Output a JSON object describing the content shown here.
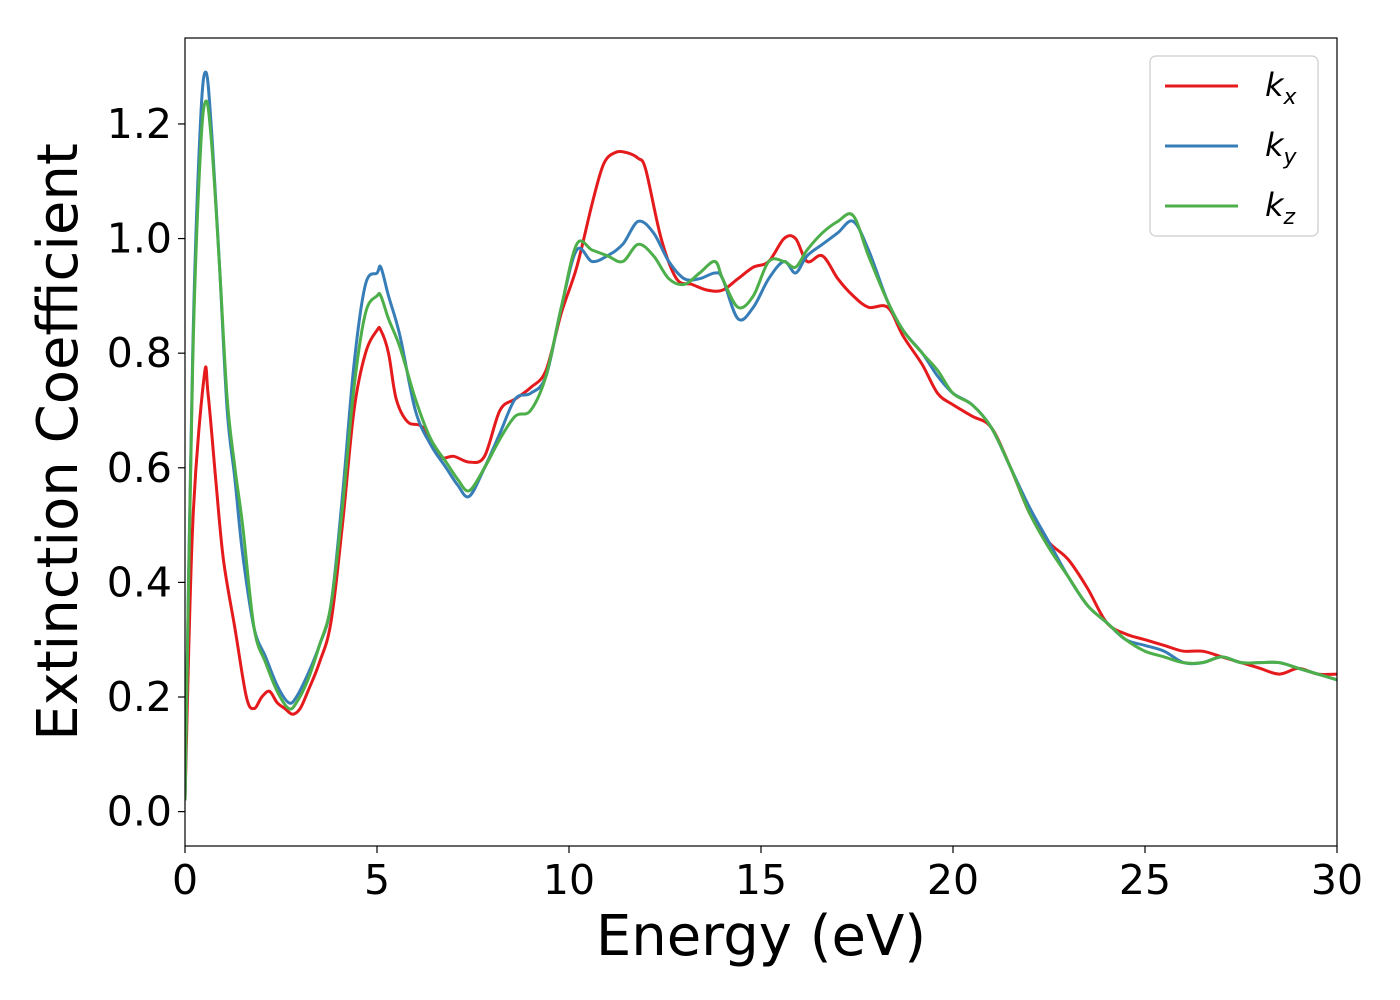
{
  "chart_data": {
    "type": "line",
    "title": "",
    "xlabel": "Energy (eV)",
    "ylabel": "Extinction Coefficient",
    "xlim": [
      0,
      30
    ],
    "ylim": [
      -0.06,
      1.35
    ],
    "xticks": [
      0,
      5,
      10,
      15,
      20,
      25,
      30
    ],
    "xtick_labels": [
      "0",
      "5",
      "10",
      "15",
      "20",
      "25",
      "30"
    ],
    "yticks": [
      0.0,
      0.2,
      0.4,
      0.6,
      0.8,
      1.0,
      1.2
    ],
    "ytick_labels": [
      "0.0",
      "0.2",
      "0.4",
      "0.6",
      "0.8",
      "1.0",
      "1.2"
    ],
    "grid": false,
    "legend": "top-right",
    "series": [
      {
        "name": "k_x",
        "label_main": "k",
        "label_sub": "x",
        "color": "#e41a1c",
        "x": [
          0,
          0.2,
          0.5,
          0.6,
          0.8,
          1.0,
          1.3,
          1.6,
          1.8,
          2.0,
          2.2,
          2.4,
          2.6,
          2.8,
          3.0,
          3.2,
          3.5,
          3.8,
          4.1,
          4.4,
          4.7,
          5.0,
          5.1,
          5.3,
          5.5,
          5.8,
          6.2,
          6.6,
          7.0,
          7.4,
          7.8,
          8.2,
          8.6,
          9.0,
          9.4,
          9.8,
          10.2,
          10.6,
          10.9,
          11.2,
          11.5,
          11.8,
          12.0,
          12.4,
          12.8,
          13.2,
          13.6,
          14.0,
          14.4,
          14.8,
          15.2,
          15.6,
          15.9,
          16.2,
          16.6,
          17.0,
          17.4,
          17.8,
          18.3,
          18.7,
          19.2,
          19.6,
          20.0,
          20.5,
          21.0,
          21.5,
          22.0,
          22.5,
          23.0,
          23.5,
          24.0,
          24.5,
          25.0,
          25.5,
          26.0,
          26.5,
          27.0,
          27.5,
          28.0,
          28.5,
          29.0,
          29.5,
          30.0
        ],
        "y": [
          0.02,
          0.5,
          0.76,
          0.73,
          0.58,
          0.44,
          0.32,
          0.2,
          0.18,
          0.2,
          0.21,
          0.19,
          0.18,
          0.17,
          0.18,
          0.21,
          0.26,
          0.33,
          0.5,
          0.7,
          0.8,
          0.84,
          0.84,
          0.8,
          0.72,
          0.68,
          0.67,
          0.62,
          0.62,
          0.61,
          0.62,
          0.7,
          0.72,
          0.74,
          0.77,
          0.87,
          0.95,
          1.06,
          1.13,
          1.15,
          1.15,
          1.14,
          1.12,
          1.0,
          0.93,
          0.92,
          0.91,
          0.91,
          0.93,
          0.95,
          0.96,
          1.0,
          1.0,
          0.96,
          0.97,
          0.93,
          0.9,
          0.88,
          0.88,
          0.83,
          0.78,
          0.73,
          0.71,
          0.69,
          0.67,
          0.6,
          0.52,
          0.47,
          0.44,
          0.39,
          0.33,
          0.31,
          0.3,
          0.29,
          0.28,
          0.28,
          0.27,
          0.26,
          0.25,
          0.24,
          0.25,
          0.24,
          0.24
        ]
      },
      {
        "name": "k_y",
        "label_main": "k",
        "label_sub": "y",
        "color": "#377eb8",
        "x": [
          0,
          0.2,
          0.4,
          0.55,
          0.7,
          0.9,
          1.1,
          1.3,
          1.5,
          1.8,
          2.1,
          2.4,
          2.7,
          2.9,
          3.2,
          3.5,
          3.8,
          4.1,
          4.4,
          4.7,
          5.0,
          5.1,
          5.3,
          5.6,
          6.0,
          6.4,
          6.8,
          7.1,
          7.4,
          7.8,
          8.2,
          8.6,
          9.0,
          9.4,
          9.8,
          10.2,
          10.6,
          11.0,
          11.4,
          11.8,
          12.2,
          12.6,
          13.0,
          13.4,
          13.8,
          14.0,
          14.4,
          14.8,
          15.2,
          15.6,
          15.9,
          16.2,
          16.6,
          17.0,
          17.4,
          17.8,
          18.3,
          18.7,
          19.2,
          19.6,
          20.0,
          20.5,
          21.0,
          21.5,
          22.0,
          22.5,
          23.0,
          23.5,
          24.0,
          24.5,
          25.0,
          25.5,
          26.0,
          26.5,
          27.0,
          27.5,
          28.0,
          28.5,
          29.0,
          29.5,
          30.0
        ],
        "y": [
          0.02,
          0.8,
          1.2,
          1.29,
          1.18,
          0.95,
          0.7,
          0.58,
          0.45,
          0.32,
          0.27,
          0.22,
          0.19,
          0.2,
          0.24,
          0.29,
          0.36,
          0.55,
          0.78,
          0.92,
          0.94,
          0.95,
          0.9,
          0.83,
          0.7,
          0.64,
          0.6,
          0.57,
          0.55,
          0.6,
          0.66,
          0.72,
          0.73,
          0.76,
          0.88,
          0.98,
          0.96,
          0.97,
          0.99,
          1.03,
          1.01,
          0.96,
          0.93,
          0.93,
          0.94,
          0.93,
          0.86,
          0.88,
          0.93,
          0.96,
          0.94,
          0.97,
          0.99,
          1.01,
          1.03,
          0.98,
          0.89,
          0.84,
          0.8,
          0.76,
          0.73,
          0.71,
          0.67,
          0.6,
          0.53,
          0.47,
          0.41,
          0.36,
          0.33,
          0.3,
          0.29,
          0.28,
          0.26,
          0.26,
          0.27,
          0.26,
          0.26,
          0.26,
          0.25,
          0.24,
          0.23
        ]
      },
      {
        "name": "k_z",
        "label_main": "k",
        "label_sub": "z",
        "color": "#4daf4a",
        "x": [
          0,
          0.2,
          0.4,
          0.55,
          0.7,
          0.9,
          1.1,
          1.3,
          1.5,
          1.8,
          2.1,
          2.4,
          2.7,
          2.9,
          3.2,
          3.5,
          3.8,
          4.1,
          4.4,
          4.7,
          5.0,
          5.1,
          5.3,
          5.6,
          6.0,
          6.4,
          6.8,
          7.1,
          7.4,
          7.8,
          8.2,
          8.6,
          9.0,
          9.4,
          9.8,
          10.2,
          10.6,
          11.0,
          11.4,
          11.8,
          12.2,
          12.6,
          13.0,
          13.4,
          13.8,
          14.0,
          14.4,
          14.8,
          15.2,
          15.6,
          15.9,
          16.2,
          16.6,
          17.0,
          17.4,
          17.8,
          18.3,
          18.7,
          19.2,
          19.6,
          20.0,
          20.5,
          21.0,
          21.5,
          22.0,
          22.5,
          23.0,
          23.5,
          24.0,
          24.5,
          25.0,
          25.5,
          26.0,
          26.5,
          27.0,
          27.5,
          28.0,
          28.5,
          29.0,
          29.5,
          30.0
        ],
        "y": [
          0.02,
          0.78,
          1.15,
          1.24,
          1.16,
          0.95,
          0.72,
          0.6,
          0.5,
          0.32,
          0.26,
          0.21,
          0.18,
          0.19,
          0.23,
          0.29,
          0.36,
          0.53,
          0.74,
          0.87,
          0.9,
          0.9,
          0.86,
          0.81,
          0.72,
          0.65,
          0.61,
          0.58,
          0.56,
          0.6,
          0.65,
          0.69,
          0.7,
          0.76,
          0.88,
          0.99,
          0.98,
          0.97,
          0.96,
          0.99,
          0.97,
          0.93,
          0.92,
          0.94,
          0.96,
          0.93,
          0.88,
          0.9,
          0.96,
          0.96,
          0.95,
          0.98,
          1.01,
          1.03,
          1.04,
          0.97,
          0.89,
          0.84,
          0.8,
          0.77,
          0.73,
          0.71,
          0.67,
          0.6,
          0.52,
          0.46,
          0.41,
          0.36,
          0.33,
          0.3,
          0.28,
          0.27,
          0.26,
          0.26,
          0.27,
          0.26,
          0.26,
          0.26,
          0.25,
          0.24,
          0.23
        ]
      }
    ]
  }
}
